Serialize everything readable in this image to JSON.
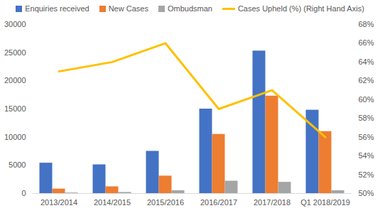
{
  "chart_data": {
    "type": "bar",
    "categories": [
      "2013/2014",
      "2014/2015",
      "2015/2016",
      "2016/2017",
      "2017/2018",
      "Q1 2018/2019"
    ],
    "series": [
      {
        "name": "Enquiries received",
        "type": "bar",
        "color": "#4472c4",
        "values": [
          5400,
          5100,
          7500,
          15000,
          25300,
          14800
        ]
      },
      {
        "name": "New Cases",
        "type": "bar",
        "color": "#ed7d31",
        "values": [
          800,
          1200,
          3100,
          10500,
          17300,
          11000
        ]
      },
      {
        "name": "Ombudsman",
        "type": "bar",
        "color": "#a5a5a5",
        "values": [
          100,
          200,
          500,
          2200,
          2000,
          500
        ]
      },
      {
        "name": "Cases Upheld (%) (Right Hand Axis)",
        "type": "line",
        "color": "#ffc000",
        "axis": "y2",
        "values": [
          63,
          64,
          66,
          59,
          61,
          56
        ]
      }
    ],
    "ylim": [
      0,
      30000
    ],
    "yticks": [
      0,
      5000,
      10000,
      15000,
      20000,
      25000,
      30000
    ],
    "y2lim": [
      50,
      68
    ],
    "y2ticks": [
      {
        "value": 50,
        "label": "50%"
      },
      {
        "value": 52,
        "label": "52%"
      },
      {
        "value": 54,
        "label": "54%"
      },
      {
        "value": 56,
        "label": "56%"
      },
      {
        "value": 58,
        "label": "58%"
      },
      {
        "value": 60,
        "label": "60%"
      },
      {
        "value": 62,
        "label": "62%"
      },
      {
        "value": 64,
        "label": "64%"
      },
      {
        "value": 66,
        "label": "66%"
      },
      {
        "value": 68,
        "label": "68%"
      }
    ],
    "grid": false,
    "legend": "top"
  }
}
